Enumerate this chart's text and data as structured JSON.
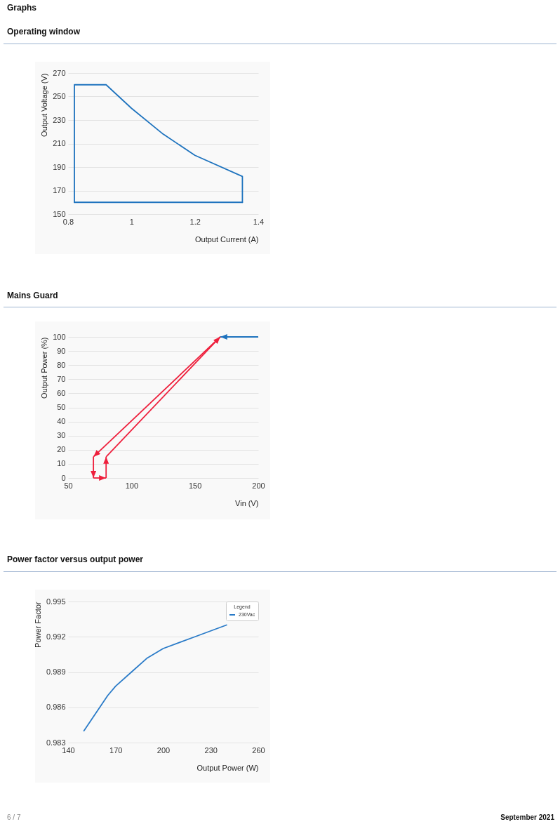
{
  "chart_data": [
    {
      "type": "line",
      "title": "Operating window",
      "annotations": [
        "Graphs"
      ],
      "xlabel": "Output Current (A)",
      "ylabel": "Output Voltage (V)",
      "series": [
        {
          "color": "#1e73be",
          "x": [
            0.82,
            0.82,
            0.92,
            1.0,
            1.1,
            1.2,
            1.35,
            1.35
          ],
          "values": [
            160,
            260,
            260,
            240,
            218,
            200,
            182,
            160
          ]
        },
        {
          "color": "#1e73be",
          "x": [
            1.35,
            0.82
          ],
          "values": [
            160,
            160
          ]
        }
      ],
      "xlim": [
        0.8,
        1.4
      ],
      "ylim": [
        150,
        270
      ],
      "xticks": [
        0.8,
        1,
        1.2,
        1.4
      ],
      "yticks": [
        150,
        170,
        190,
        210,
        230,
        250,
        270
      ],
      "grid": "y"
    },
    {
      "type": "line",
      "title": "Mains Guard",
      "xlabel": "Vin (V)",
      "ylabel": "Output Power (%)",
      "series": [
        {
          "color": "#1e73be",
          "x": [
            200,
            170
          ],
          "values": [
            100,
            100
          ]
        },
        {
          "color": "#ee1f3c",
          "x": [
            170,
            70
          ],
          "values": [
            100,
            15
          ]
        },
        {
          "color": "#ee1f3c",
          "x": [
            70,
            70
          ],
          "values": [
            15,
            0
          ]
        },
        {
          "color": "#ee1f3c",
          "x": [
            70,
            80
          ],
          "values": [
            0,
            0
          ]
        },
        {
          "color": "#ee1f3c",
          "x": [
            80,
            80
          ],
          "values": [
            0,
            15
          ]
        },
        {
          "color": "#ee1f3c",
          "x": [
            80,
            170
          ],
          "values": [
            15,
            100
          ]
        }
      ],
      "xlim": [
        50,
        200
      ],
      "ylim": [
        0,
        100
      ],
      "xticks": [
        50,
        100,
        150,
        200
      ],
      "yticks": [
        0,
        10,
        20,
        30,
        40,
        50,
        60,
        70,
        80,
        90,
        100
      ],
      "grid": "y"
    },
    {
      "type": "line",
      "title": "Power factor versus output power",
      "xlabel": "Output Power (W)",
      "ylabel": "Power Factor",
      "legend_title": "Legend",
      "legend": "top right",
      "x": [
        150,
        165,
        170,
        180,
        190,
        200,
        220,
        240
      ],
      "series": [
        {
          "name": "230Vac",
          "color": "#2a7bc8",
          "values": [
            0.984,
            0.987,
            0.9878,
            0.989,
            0.9902,
            0.991,
            0.992,
            0.993
          ]
        }
      ],
      "xlim": [
        140,
        260
      ],
      "ylim": [
        0.983,
        0.995
      ],
      "xticks": [
        140,
        170,
        200,
        230,
        260
      ],
      "yticks": [
        0.983,
        0.986,
        0.989,
        0.992,
        0.995
      ],
      "grid": "y",
      "annotations": [
        "6 / 7",
        "September 2021"
      ]
    }
  ]
}
